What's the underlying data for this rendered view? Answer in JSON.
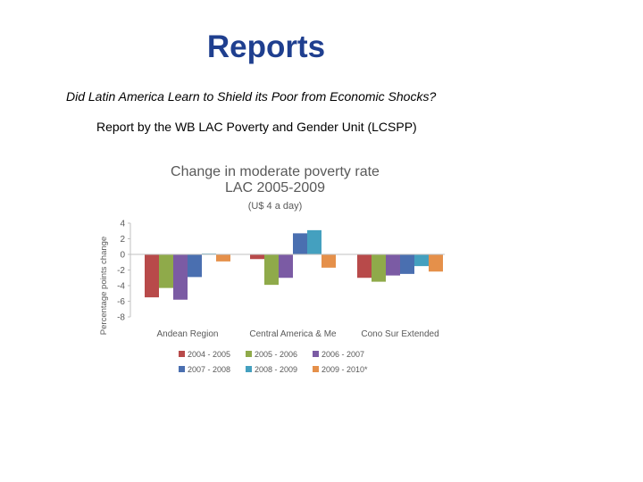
{
  "page": {
    "title": "Reports",
    "subtitle": "Did Latin America Learn to Shield its Poor from Economic Shocks?",
    "report_by": "Report by the WB LAC Poverty and Gender Unit (LCSPP)"
  },
  "chart_data": {
    "type": "bar",
    "title": "Change in moderate poverty rate",
    "title_line2": "LAC 2005-2009",
    "subtitle": "(U$ 4 a day)",
    "xlabel": "",
    "ylabel": "Percentage points change",
    "ylim": [
      -8,
      4
    ],
    "yticks": [
      4,
      2,
      0,
      -2,
      -4,
      -6,
      -8
    ],
    "grid": false,
    "legend_position": "bottom",
    "categories": [
      "Andean Region",
      "Central America & Me",
      "Cono Sur Extended"
    ],
    "series": [
      {
        "name": "2004 - 2005",
        "color": "#b84a4a",
        "values": [
          -5.5,
          -0.6,
          -3.0
        ]
      },
      {
        "name": "2005 - 2006",
        "color": "#8faa4a",
        "values": [
          -4.3,
          -3.9,
          -3.5
        ]
      },
      {
        "name": "2006 - 2007",
        "color": "#7b5ba4",
        "values": [
          -5.8,
          -3.0,
          -2.7
        ]
      },
      {
        "name": "2007 - 2008",
        "color": "#4a6fb0",
        "values": [
          -2.9,
          2.7,
          -2.5
        ]
      },
      {
        "name": "2008 - 2009",
        "color": "#44a0bf",
        "values": [
          0.1,
          3.1,
          -1.5
        ]
      },
      {
        "name": "2009 - 2010*",
        "color": "#e5904a",
        "values": [
          -0.9,
          -1.7,
          -2.2
        ]
      }
    ]
  }
}
